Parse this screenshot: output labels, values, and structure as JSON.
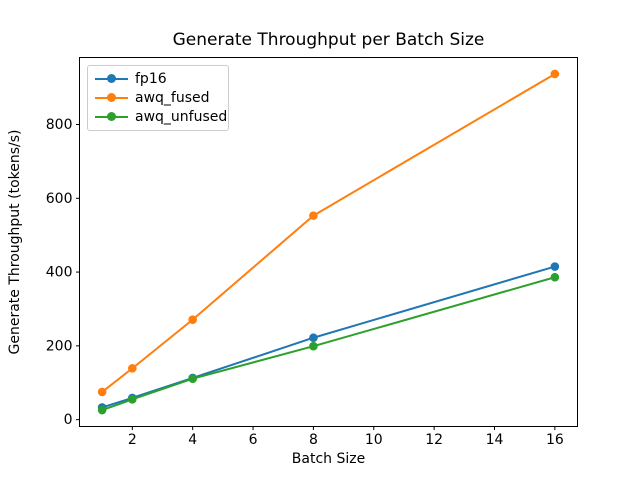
{
  "title": "Generate Throughput per Batch Size",
  "chart_data": {
    "type": "line",
    "title": "Generate Throughput per Batch Size",
    "xlabel": "Batch Size",
    "ylabel": "Generate Throughput (tokens/s)",
    "x": [
      1,
      2,
      4,
      8,
      16
    ],
    "series": [
      {
        "name": "fp16",
        "color": "#1f77b4",
        "values": [
          33,
          59,
          113,
          222,
          415
        ]
      },
      {
        "name": "awq_fused",
        "color": "#ff7f0e",
        "values": [
          75,
          139,
          271,
          553,
          937
        ]
      },
      {
        "name": "awq_unfused",
        "color": "#2ca02c",
        "values": [
          26,
          55,
          111,
          199,
          386
        ]
      }
    ],
    "xticks": [
      2,
      4,
      6,
      8,
      10,
      12,
      14,
      16
    ],
    "yticks": [
      0,
      200,
      400,
      600,
      800
    ],
    "xlim": [
      0.25,
      16.75
    ],
    "ylim": [
      -18.6,
      981.6
    ],
    "legend_position": "upper left",
    "grid": false,
    "marker": "o",
    "line_style": "solid",
    "axis_color": "#000000",
    "background": "#ffffff"
  }
}
